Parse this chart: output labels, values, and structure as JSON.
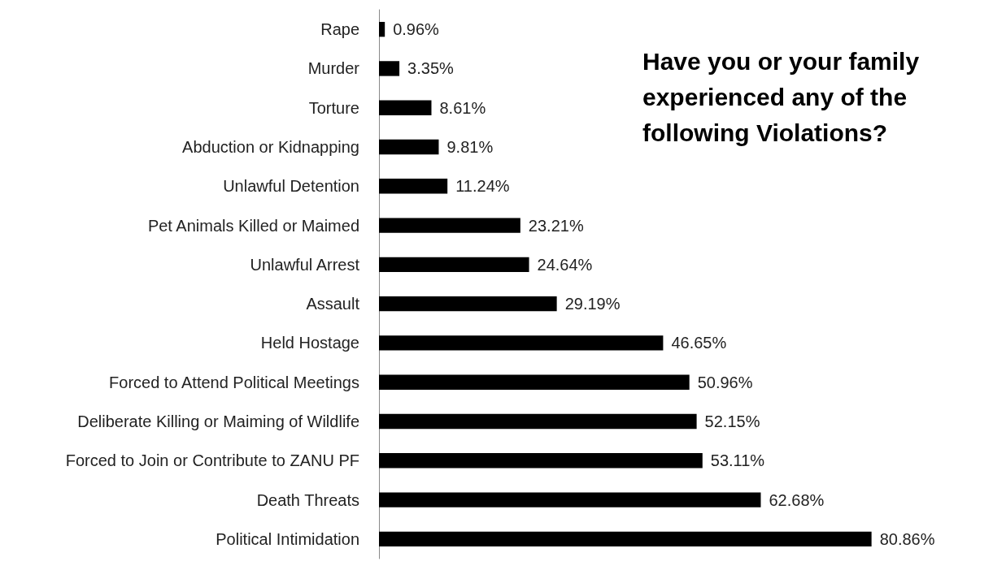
{
  "chart_data": {
    "type": "bar",
    "orientation": "horizontal",
    "title": "Have you or your family experienced any of the following Violations?",
    "categories": [
      "Rape",
      "Murder",
      "Torture",
      "Abduction or Kidnapping",
      "Unlawful Detention",
      "Pet Animals Killed or Maimed",
      "Unlawful Arrest",
      "Assault",
      "Held Hostage",
      "Forced to Attend Political Meetings",
      "Deliberate Killing or Maiming of Wildlife",
      "Forced to Join or Contribute to ZANU PF",
      "Death Threats",
      "Political Intimidation"
    ],
    "values": [
      0.96,
      3.35,
      8.61,
      9.81,
      11.24,
      23.21,
      24.64,
      29.19,
      46.65,
      50.96,
      52.15,
      53.11,
      62.68,
      80.86
    ],
    "value_labels": [
      "0.96%",
      "3.35%",
      "8.61%",
      "9.81%",
      "11.24%",
      "23.21%",
      "24.64%",
      "29.19%",
      "46.65%",
      "50.96%",
      "52.15%",
      "53.11%",
      "62.68%",
      "80.86%"
    ],
    "color": "#000000"
  }
}
